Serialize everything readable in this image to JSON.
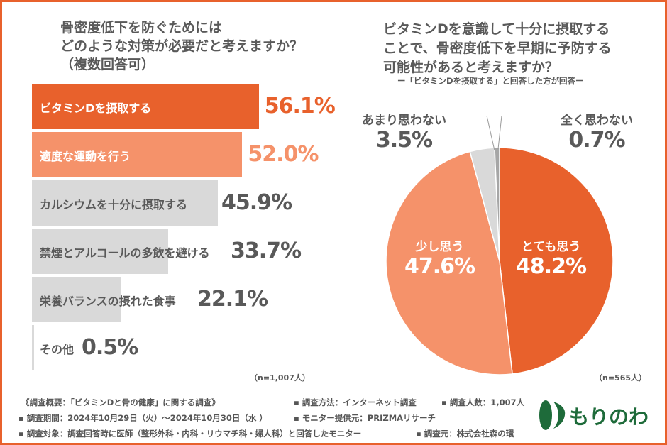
{
  "left_question": [
    "骨密度低下を防ぐためには",
    "どのような対策が必要だと考えますか？",
    "（複数回答可）"
  ],
  "right_question": [
    "ビタミンDを意識して十分に摂取する",
    "ことで、骨密度低下を早期に予防する",
    "可能性があると考えますか？"
  ],
  "right_subtitle": "ー「ビタミンDを摂取する」と回答した方が回答ー",
  "colors": {
    "accent": "#e8612c",
    "light": "#f5926a",
    "gray": "#d9d9d9",
    "dark_gray": "#a6a6a6",
    "logo": "#1e6b3a"
  },
  "chart_data": [
    {
      "type": "bar",
      "orientation": "horizontal",
      "categories": [
        "ビタミンDを摂取する",
        "適度な運動を行う",
        "カルシウムを十分に摂取する",
        "禁煙とアルコールの多飲を避ける",
        "栄養バランスの摂れた食事",
        "その他"
      ],
      "values": [
        56.1,
        52.0,
        45.9,
        33.7,
        22.1,
        0.5
      ],
      "value_labels": [
        "56.1%",
        "52.0%",
        "45.9%",
        "33.7%",
        "22.1%",
        "0.5%"
      ],
      "note": "（n=1,007人）"
    },
    {
      "type": "pie",
      "categories": [
        "とても思う",
        "少し思う",
        "あまり思わない",
        "全く思わない"
      ],
      "values": [
        48.2,
        47.6,
        3.5,
        0.7
      ],
      "value_labels": [
        "48.2%",
        "47.6%",
        "3.5%",
        "0.7%"
      ],
      "note": "（n=565人）"
    }
  ],
  "footer": {
    "overview": "《調査概要：「ビタミンDと骨の健康」に関する調査》",
    "method": "▪ 調査方法：インターネット調査",
    "count": "▪ 調査人数：1,007人",
    "period": "▪ 調査期間：2024年10月29日（火）～2024年10月30日（水 ）",
    "provider": "▪ モニター提供元：PRIZMAリサーチ",
    "target": "▪ 調査対象：調査回答時に医師（整形外科・内科・リウマチ科・婦人科）と回答したモニター",
    "source": "▪ 調査元：株式会社森の環"
  },
  "logo_text": "もりのわ"
}
